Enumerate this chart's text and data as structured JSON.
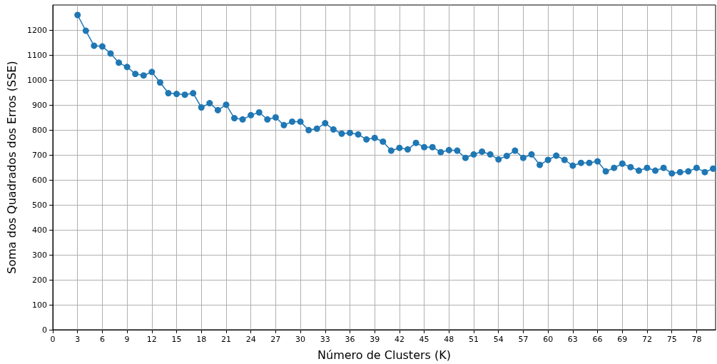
{
  "chart_data": {
    "type": "line",
    "xlabel": "Número de Clusters (K)",
    "ylabel": "Soma dos Quadrados dos Erros (SSE)",
    "x": [
      3,
      4,
      5,
      6,
      7,
      8,
      9,
      10,
      11,
      12,
      13,
      14,
      15,
      16,
      17,
      18,
      19,
      20,
      21,
      22,
      23,
      24,
      25,
      26,
      27,
      28,
      29,
      30,
      31,
      32,
      33,
      34,
      35,
      36,
      37,
      38,
      39,
      40,
      41,
      42,
      43,
      44,
      45,
      46,
      47,
      48,
      49,
      50,
      51,
      52,
      53,
      54,
      55,
      56,
      57,
      58,
      59,
      60,
      61,
      62,
      63,
      64,
      65,
      66,
      67,
      68,
      69,
      70,
      71,
      72,
      73,
      74,
      75,
      76,
      77,
      78,
      79,
      80
    ],
    "series": [
      {
        "color": "#1f77b4",
        "values": [
          1260,
          1197,
          1137,
          1134,
          1106,
          1069,
          1052,
          1024,
          1018,
          1032,
          990,
          947,
          944,
          941,
          947,
          890,
          907,
          879,
          901,
          847,
          842,
          859,
          870,
          842,
          850,
          819,
          833,
          833,
          799,
          805,
          827,
          802,
          785,
          788,
          782,
          762,
          768,
          753,
          717,
          728,
          722,
          748,
          731,
          731,
          711,
          719,
          717,
          688,
          702,
          713,
          702,
          682,
          696,
          717,
          688,
          702,
          660,
          680,
          697,
          680,
          657,
          668,
          668,
          674,
          634,
          648,
          665,
          651,
          637,
          648,
          637,
          648,
          626,
          631,
          634,
          648,
          631,
          645
        ]
      }
    ],
    "xlim": [
      0,
      80.3
    ],
    "xticks": [
      0,
      3,
      6,
      9,
      12,
      15,
      18,
      21,
      24,
      27,
      30,
      33,
      36,
      39,
      42,
      45,
      48,
      51,
      54,
      57,
      60,
      63,
      66,
      69,
      72,
      75,
      78
    ],
    "ylim": [
      0,
      1300
    ],
    "yticks": [
      0,
      100,
      200,
      300,
      400,
      500,
      600,
      700,
      800,
      900,
      1000,
      1100,
      1200
    ],
    "grid": true,
    "marker": "circle",
    "line_style": "solid"
  }
}
